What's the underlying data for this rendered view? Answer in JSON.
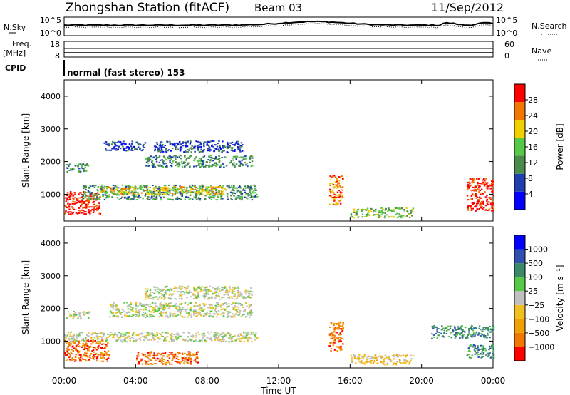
{
  "header": {
    "title": "Zhongshan Station (fitACF)",
    "beam": "Beam 03",
    "date": "11/Sep/2012"
  },
  "top_panel": {
    "left_label": "N.Sky",
    "right_label": "N.Search",
    "left_ticks": [
      "10^5",
      "10^0"
    ],
    "right_ticks": [
      "10^5",
      "10^0"
    ]
  },
  "freq_panel": {
    "left_label_line1": "Freq.",
    "left_label_line2": "[MHz]",
    "right_label": "Nave",
    "left_ticks": [
      "18",
      "8"
    ],
    "right_ticks": [
      "60",
      "0"
    ]
  },
  "cpid": {
    "label": "CPID",
    "mode": "normal (fast stereo) 153"
  },
  "chart_data": [
    {
      "type": "heatmap",
      "name": "power",
      "xlabel": "Time UT",
      "ylabel": "Slant Range [km]",
      "x_ticks": [
        "00:00",
        "04:00",
        "08:00",
        "12:00",
        "16:00",
        "20:00",
        "00:00"
      ],
      "xlim_hours": [
        0,
        24
      ],
      "y_ticks": [
        1000,
        2000,
        3000,
        4000
      ],
      "ylim_km": [
        180,
        4500
      ],
      "colorbar": {
        "label": "Power [dB]",
        "ticks": [
          "28",
          "24",
          "20",
          "16",
          "12",
          "8",
          "4"
        ],
        "colors": [
          "#0000ff",
          "#1f3fae",
          "#4a8a4a",
          "#58c848",
          "#f0d000",
          "#f07800",
          "#ff0000"
        ]
      },
      "regions": [
        {
          "t0": 0.0,
          "t1": 2.0,
          "r0": 400,
          "r1": 1100,
          "level": 6
        },
        {
          "t0": 0.1,
          "t1": 1.4,
          "r0": 1700,
          "r1": 1950,
          "level": 2
        },
        {
          "t0": 1.0,
          "t1": 10.8,
          "r0": 850,
          "r1": 1300,
          "level": 2
        },
        {
          "t0": 2.0,
          "t1": 9.0,
          "r0": 1000,
          "r1": 1250,
          "level": 4
        },
        {
          "t0": 2.2,
          "t1": 4.5,
          "r0": 2350,
          "r1": 2650,
          "level": 1
        },
        {
          "t0": 4.5,
          "t1": 10.5,
          "r0": 1850,
          "r1": 2200,
          "level": 2
        },
        {
          "t0": 5.0,
          "t1": 10.0,
          "r0": 2300,
          "r1": 2650,
          "level": 1
        },
        {
          "t0": 14.8,
          "t1": 15.6,
          "r0": 700,
          "r1": 1600,
          "level": 5
        },
        {
          "t0": 16.0,
          "t1": 19.5,
          "r0": 300,
          "r1": 600,
          "level": 3
        },
        {
          "t0": 22.5,
          "t1": 24.0,
          "r0": 500,
          "r1": 1500,
          "level": 6
        }
      ]
    },
    {
      "type": "heatmap",
      "name": "velocity",
      "xlabel": "Time UT",
      "ylabel": "Slant Range [km]",
      "x_ticks": [
        "00:00",
        "04:00",
        "08:00",
        "12:00",
        "16:00",
        "20:00",
        "00:00"
      ],
      "xlim_hours": [
        0,
        24
      ],
      "y_ticks": [
        1000,
        2000,
        3000,
        4000
      ],
      "ylim_km": [
        180,
        4500
      ],
      "colorbar": {
        "label": "Velocity [m s⁻¹]",
        "ticks": [
          "1000",
          "500",
          "100",
          "25",
          "−25",
          "−100",
          "−500",
          "−1000"
        ],
        "colors": [
          "#ff0000",
          "#f07800",
          "#f0a000",
          "#f0c020",
          "#c0c0c0",
          "#58c848",
          "#3a8a6a",
          "#3050b0",
          "#0000ff"
        ]
      },
      "regions": [
        {
          "t0": 0.0,
          "t1": 2.5,
          "r0": 400,
          "r1": 1050,
          "level": 1
        },
        {
          "t0": 0.0,
          "t1": 10.8,
          "r0": 1000,
          "r1": 1300,
          "level": 4
        },
        {
          "t0": 0.1,
          "t1": 1.4,
          "r0": 1700,
          "r1": 1950,
          "level": 4
        },
        {
          "t0": 2.5,
          "t1": 10.5,
          "r0": 1750,
          "r1": 2200,
          "level": 4
        },
        {
          "t0": 4.5,
          "t1": 10.5,
          "r0": 2300,
          "r1": 2700,
          "level": 4
        },
        {
          "t0": 4.0,
          "t1": 7.5,
          "r0": 300,
          "r1": 700,
          "level": 1
        },
        {
          "t0": 14.8,
          "t1": 15.6,
          "r0": 700,
          "r1": 1600,
          "level": 1
        },
        {
          "t0": 16.0,
          "t1": 19.5,
          "r0": 300,
          "r1": 600,
          "level": 3
        },
        {
          "t0": 20.5,
          "t1": 24.0,
          "r0": 1100,
          "r1": 1500,
          "level": 6
        },
        {
          "t0": 22.5,
          "t1": 24.0,
          "r0": 500,
          "r1": 900,
          "level": 6
        }
      ]
    }
  ]
}
